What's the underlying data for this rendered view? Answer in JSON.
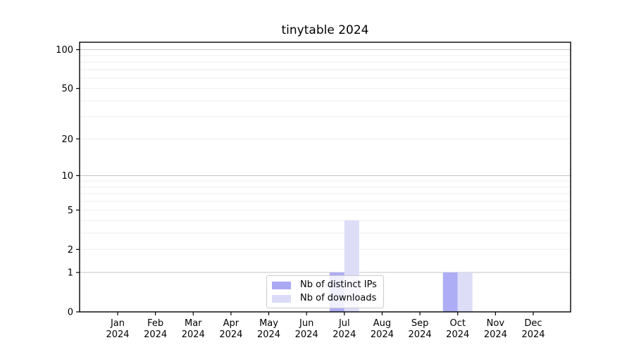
{
  "chart_data": {
    "type": "bar",
    "title": "tinytable 2024",
    "year_label": "2024",
    "categories": [
      "Jan",
      "Feb",
      "Mar",
      "Apr",
      "May",
      "Jun",
      "Jul",
      "Aug",
      "Sep",
      "Oct",
      "Nov",
      "Dec"
    ],
    "series": [
      {
        "name": "Nb of distinct IPs",
        "color": "#a9a9f4",
        "values": [
          0,
          0,
          0,
          0,
          0,
          0,
          1,
          0,
          0,
          1,
          0,
          0
        ]
      },
      {
        "name": "Nb of downloads",
        "color": "#dbdbf8",
        "values": [
          0,
          0,
          0,
          0,
          0,
          0,
          4,
          0,
          0,
          1,
          0,
          0
        ]
      }
    ],
    "xlabel": "",
    "ylabel": "",
    "yscale": "log1p",
    "ylim": [
      0,
      114
    ],
    "yticks": [
      0,
      1,
      2,
      5,
      10,
      20,
      50,
      100
    ],
    "grid": {
      "major": [
        1,
        10,
        100
      ],
      "minor": [
        2,
        3,
        4,
        5,
        6,
        7,
        8,
        9,
        20,
        30,
        40,
        50,
        60,
        70,
        80,
        90
      ]
    },
    "grid_on": true,
    "legend_position": "lower center",
    "axis_color": "#000000",
    "grid_major_color": "#c6c6c6",
    "grid_minor_color": "#eeeeee"
  }
}
